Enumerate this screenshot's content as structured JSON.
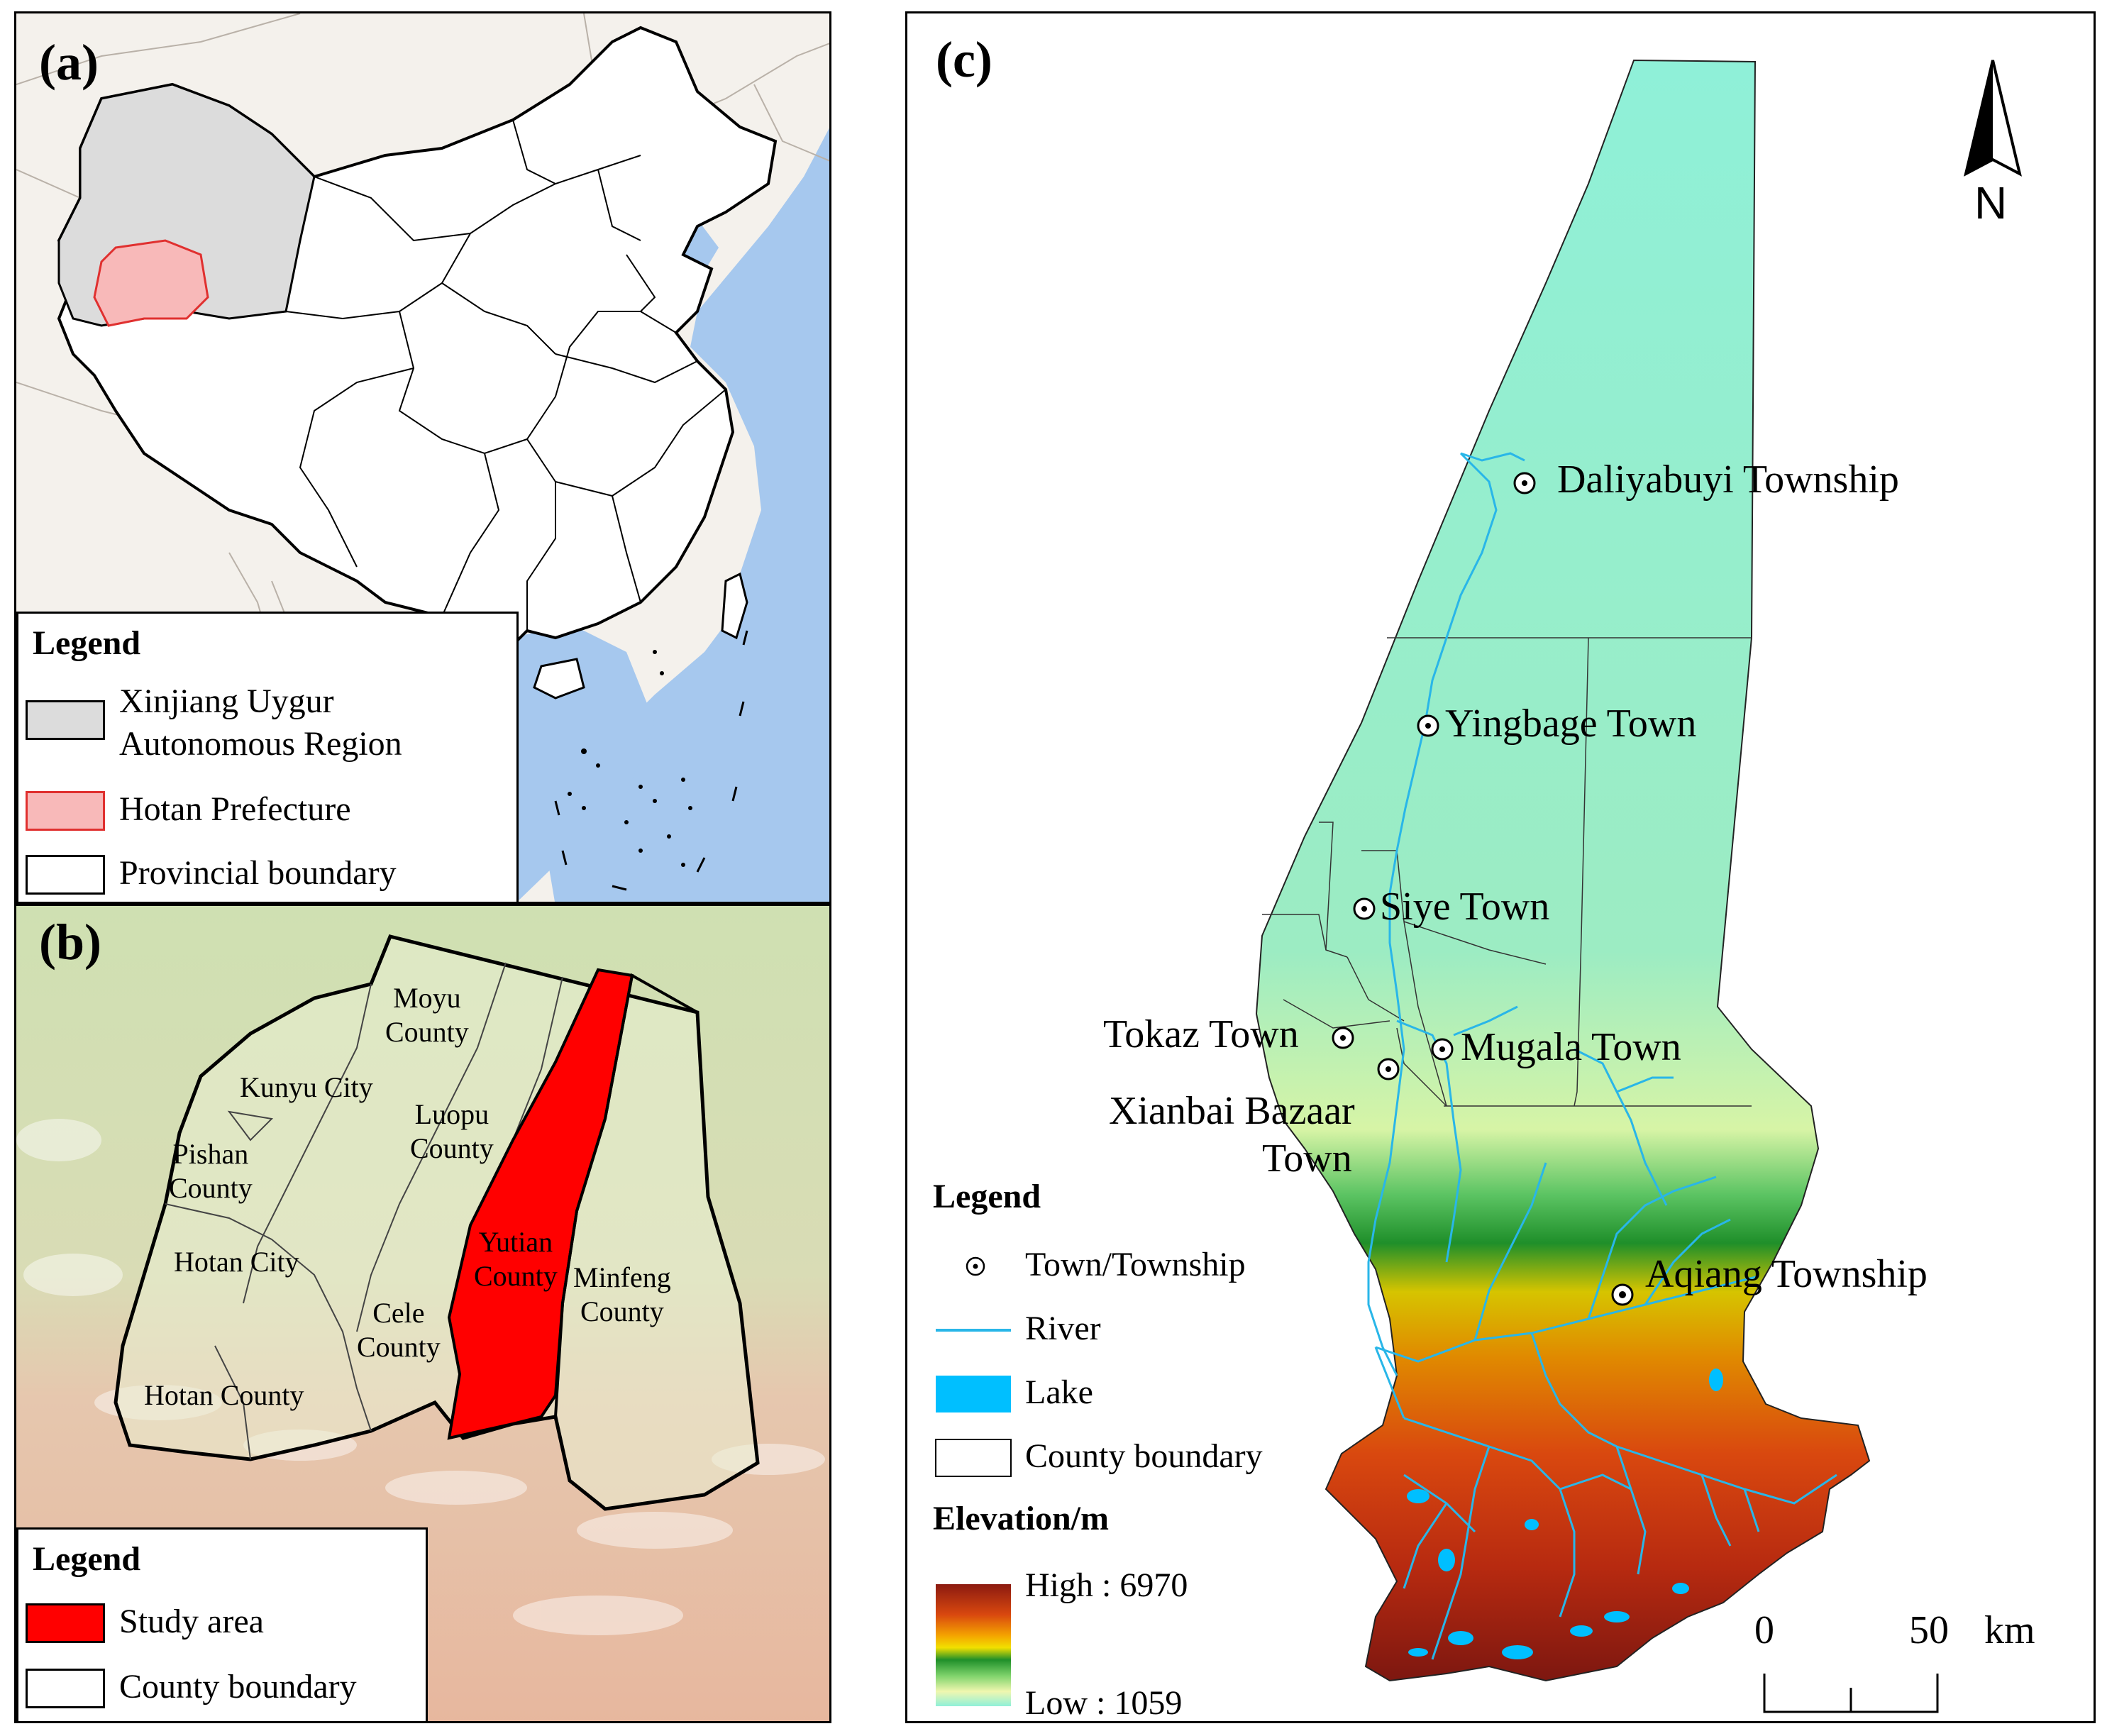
{
  "panels": {
    "a": {
      "label": "(a)",
      "legend": {
        "title": "Legend",
        "items": [
          {
            "label_lines": [
              "Xinjiang Uygur",
              "Autonomous Region"
            ],
            "fill": "#dcdcdc",
            "stroke": "#000000"
          },
          {
            "label_lines": [
              "Hotan Prefecture"
            ],
            "fill": "#f8b9b9",
            "stroke": "#e0302f"
          },
          {
            "label_lines": [
              "Provincial boundary"
            ],
            "fill": "#ffffff",
            "stroke": "#000000"
          }
        ]
      },
      "colors": {
        "sea": "#a6c8ee",
        "land": "#f4f1ec",
        "xinjiang": "#dcdcdc",
        "hotan": "#f8b9b9",
        "china": "#ffffff"
      }
    },
    "b": {
      "label": "(b)",
      "counties": [
        {
          "name_lines": [
            "Moyu",
            "County"
          ]
        },
        {
          "name_lines": [
            "Kunyu City"
          ]
        },
        {
          "name_lines": [
            "Luopu",
            "County"
          ]
        },
        {
          "name_lines": [
            "Pishan",
            "County"
          ]
        },
        {
          "name_lines": [
            "Hotan City"
          ]
        },
        {
          "name_lines": [
            "Yutian",
            "County"
          ]
        },
        {
          "name_lines": [
            "Minfeng",
            "County"
          ]
        },
        {
          "name_lines": [
            "Cele",
            "County"
          ]
        },
        {
          "name_lines": [
            "Hotan County"
          ]
        }
      ],
      "legend": {
        "title": "Legend",
        "items": [
          {
            "label": "Study area",
            "fill": "#ff0000",
            "stroke": "#000000"
          },
          {
            "label": "County boundary",
            "fill": "#ffffff",
            "stroke": "#000000"
          }
        ]
      },
      "colors": {
        "study_area": "#ff0000",
        "background_north": "#d2e2b6",
        "background_south": "#e2b9a1"
      }
    },
    "c": {
      "label": "(c)",
      "north_arrow": "N",
      "towns": [
        {
          "name": "Daliyabuyi Township"
        },
        {
          "name": "Yingbage Town"
        },
        {
          "name": "Siye Town"
        },
        {
          "name": "Tokaz Town"
        },
        {
          "name": "Mugala Town"
        },
        {
          "name_lines": [
            "Xianbai Bazaar",
            "Town"
          ]
        },
        {
          "name": "Aqiang Township"
        }
      ],
      "legend": {
        "title": "Legend",
        "items": [
          {
            "label": "Town/Township",
            "symbol": "town-icon"
          },
          {
            "label": "River",
            "symbol": "river-line-icon",
            "color": "#29b6e8"
          },
          {
            "label": "Lake",
            "symbol": "lake-swatch",
            "color": "#00bfff"
          },
          {
            "label": "County boundary",
            "symbol": "county-boundary-swatch"
          }
        ],
        "elevation": {
          "title": "Elevation/m",
          "high_label": "High : 6970",
          "low_label": "Low : 1059",
          "gradient_colors": [
            "#8b1a10",
            "#d9480f",
            "#f4a300",
            "#f2e000",
            "#1f8f2a",
            "#7ed36b",
            "#f0f7b0",
            "#8ff0d8"
          ]
        }
      },
      "scale_bar": {
        "zero": "0",
        "value": "50",
        "unit": "km"
      }
    }
  }
}
